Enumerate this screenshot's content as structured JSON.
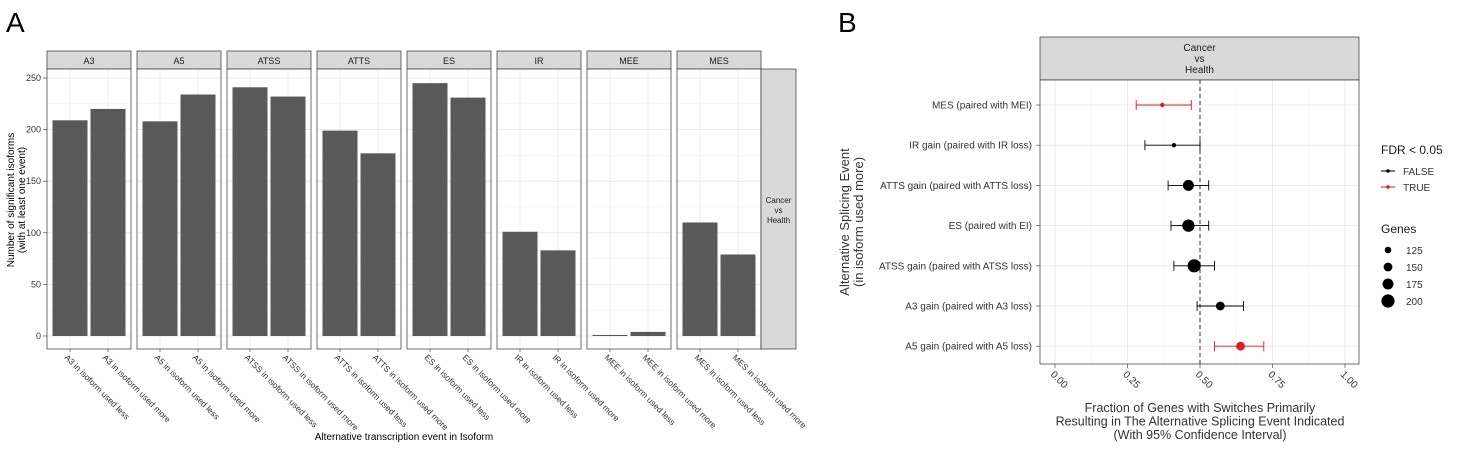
{
  "chart_data": [
    {
      "type": "bar",
      "panel_label": "A",
      "facets": [
        "A3",
        "A5",
        "ATSS",
        "ATTS",
        "ES",
        "IR",
        "MEE",
        "MES"
      ],
      "strip_right": [
        "Cancer",
        "vs",
        "Health"
      ],
      "ylabel": [
        "Number of significant isoforms",
        "(with at least one event)"
      ],
      "xlabel": "Alternative transcription event in Isoform",
      "ylim": [
        0,
        250
      ],
      "yticks": [
        0,
        50,
        100,
        150,
        200,
        250
      ],
      "bars": [
        {
          "facet": "A3",
          "label": "A3 in isoform used less",
          "value": 209
        },
        {
          "facet": "A3",
          "label": "A3 in isoform used more",
          "value": 220
        },
        {
          "facet": "A5",
          "label": "A5 in isoform used less",
          "value": 208
        },
        {
          "facet": "A5",
          "label": "A5 in isoform used more",
          "value": 234
        },
        {
          "facet": "ATSS",
          "label": "ATSS in isoform used less",
          "value": 241
        },
        {
          "facet": "ATSS",
          "label": "ATSS in isoform used more",
          "value": 232
        },
        {
          "facet": "ATTS",
          "label": "ATTS in isoform used less",
          "value": 199
        },
        {
          "facet": "ATTS",
          "label": "ATTS in isoform used more",
          "value": 177
        },
        {
          "facet": "ES",
          "label": "ES in isoform used less",
          "value": 245
        },
        {
          "facet": "ES",
          "label": "ES in isoform used more",
          "value": 231
        },
        {
          "facet": "IR",
          "label": "IR in isoform used less",
          "value": 101
        },
        {
          "facet": "IR",
          "label": "IR in isoform used more",
          "value": 83
        },
        {
          "facet": "MEE",
          "label": "MEE in isoform used less",
          "value": 1
        },
        {
          "facet": "MEE",
          "label": "MEE in isoform used more",
          "value": 4
        },
        {
          "facet": "MES",
          "label": "MES in isoform used less",
          "value": 110
        },
        {
          "facet": "MES",
          "label": "MES in isoform used more",
          "value": 79
        }
      ],
      "bar_color": "#595959",
      "grid": true
    },
    {
      "type": "scatter",
      "panel_label": "B",
      "strip_top": [
        "Cancer",
        "vs",
        "Health"
      ],
      "categories": [
        "MES (paired with MEI)",
        "IR gain (paired with IR loss)",
        "ATTS gain (paired with ATTS loss)",
        "ES (paired with EI)",
        "ATSS gain (paired with ATSS loss)",
        "A3 gain (paired with A3 loss)",
        "A5 gain (paired with A5 loss)"
      ],
      "points": [
        {
          "y": "MES (paired with MEI)",
          "x": 0.37,
          "lo": 0.28,
          "hi": 0.47,
          "genes": 100,
          "fdr": "TRUE"
        },
        {
          "y": "IR gain (paired with IR loss)",
          "x": 0.41,
          "lo": 0.31,
          "hi": 0.5,
          "genes": 100,
          "fdr": "FALSE"
        },
        {
          "y": "ATTS gain (paired with ATTS loss)",
          "x": 0.46,
          "lo": 0.39,
          "hi": 0.53,
          "genes": 175,
          "fdr": "FALSE"
        },
        {
          "y": "ES (paired with EI)",
          "x": 0.46,
          "lo": 0.4,
          "hi": 0.53,
          "genes": 190,
          "fdr": "FALSE"
        },
        {
          "y": "ATSS gain (paired with ATSS loss)",
          "x": 0.48,
          "lo": 0.41,
          "hi": 0.55,
          "genes": 200,
          "fdr": "FALSE"
        },
        {
          "y": "A3 gain (paired with A3 loss)",
          "x": 0.57,
          "lo": 0.49,
          "hi": 0.65,
          "genes": 150,
          "fdr": "FALSE"
        },
        {
          "y": "A5 gain (paired with A5 loss)",
          "x": 0.64,
          "lo": 0.55,
          "hi": 0.72,
          "genes": 150,
          "fdr": "TRUE"
        }
      ],
      "xlim": [
        0,
        1
      ],
      "xticks": [
        "0.00",
        "0.25",
        "0.50",
        "0.75",
        "1.00"
      ],
      "reference_line": 0.5,
      "ylabel": [
        "Alternative Splicing Event",
        "(in isoform used more)"
      ],
      "xlabel": [
        "Fraction of Genes with Switches Primarily",
        "Resulting in The Alternative Splicing Event Indicated",
        "(With 95% Confidence Interval)"
      ],
      "legend": {
        "fdr_title": "FDR < 0.05",
        "fdr_items": [
          {
            "label": "FALSE",
            "color": "#000000"
          },
          {
            "label": "TRUE",
            "color": "#e41a1c"
          }
        ],
        "genes_title": "Genes",
        "genes_items": [
          125,
          150,
          175,
          200
        ]
      },
      "grid": true
    }
  ]
}
